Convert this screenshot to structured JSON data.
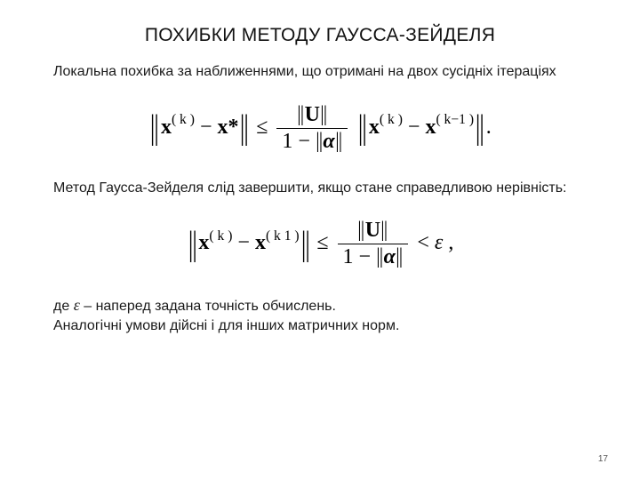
{
  "title": "ПОХИБКИ МЕТОДУ ГАУССА-ЗЕЙДЕЛЯ",
  "para1": "Локальна похибка за наближеннями, що отримані на двох сусідніх ітераціях",
  "formula1": {
    "lhs_vec": "x",
    "lhs_sup": "( k )",
    "minus": " − ",
    "xstar": "x*",
    "leq": " ≤ ",
    "frac_num_sym": "U",
    "frac_den_prefix": "1 − ",
    "alpha": "α",
    "rhs_vec": "x",
    "rhs_sup1": "( k )",
    "rhs_sup2": "( k−1 )",
    "trail": "."
  },
  "para2": "Метод  Гаусса-Зейделя слід завершити, якщо стане справедливою нерівність:",
  "formula2": {
    "lhs_vec": "x",
    "lhs_sup1": "( k )",
    "lhs_sup2": "( k   1 )",
    "leq": " ≤ ",
    "frac_num_sym": "U",
    "frac_den": "1 − ",
    "alpha": "α",
    "lt": " < ",
    "eps": "ε",
    "trail": " ,"
  },
  "para3_pre": "де  ",
  "epsilon": "ε",
  "para3_post": " – наперед задана точність обчислень.",
  "para4": "Аналогічні умови дійсні і для інших матричних норм.",
  "pagenum": "17",
  "colors": {
    "text": "#000000",
    "bg": "#ffffff"
  }
}
